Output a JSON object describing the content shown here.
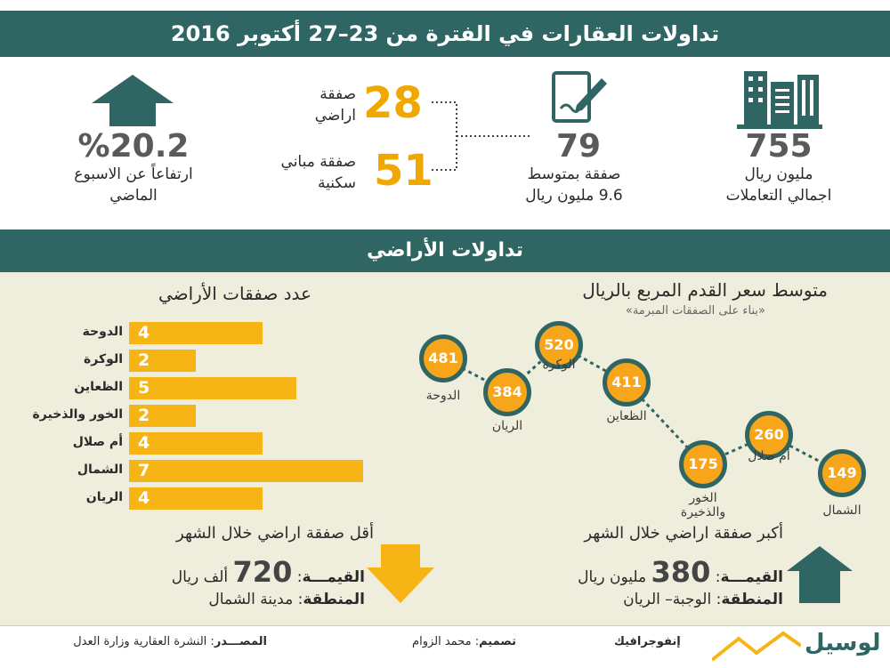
{
  "header": {
    "title": "تداولات العقارات في الفترة من 23–27 أكتوبر 2016"
  },
  "stats": {
    "change_value": "%20.2",
    "change_label_1": "ارتفاعاً عن الاسبوع",
    "change_label_2": "الماضي",
    "land_deals_value": "28",
    "land_deals_label_1": "صفقة",
    "land_deals_label_2": "اراضي",
    "residential_value": "51",
    "residential_label_1": "صفقة مباني",
    "residential_label_2": "سكنية",
    "deals_total_value": "79",
    "deals_total_label_1": "صفقة بمتوسط",
    "deals_total_label_2": "9.6 مليون ريال",
    "total_value": "755",
    "total_label_1": "مليون ريال",
    "total_label_2": "اجمالي التعاملات"
  },
  "section": {
    "title": "تداولات الأراضي"
  },
  "chart_data": [
    {
      "type": "bar",
      "title": "عدد صفقات الأراضي",
      "categories": [
        "الدوحة",
        "الوكرة",
        "الظعاين",
        "الخور والذخيرة",
        "أم صلال",
        "الشمال",
        "الريان"
      ],
      "values": [
        4,
        2,
        5,
        2,
        4,
        7,
        4
      ],
      "xlim": [
        0,
        7
      ]
    },
    {
      "type": "line",
      "title": "متوسط سعر القدم المربع بالريال",
      "subtitle": "«بناء على الصفقات المبرمة»",
      "categories": [
        "الدوحة",
        "الريان",
        "الوكرة",
        "الظعاين",
        "الخور والذخيرة",
        "أم صلال",
        "الشمال"
      ],
      "values": [
        481,
        384,
        520,
        411,
        175,
        260,
        149
      ]
    }
  ],
  "smallest": {
    "heading": "أقل صفقة اراضي خلال الشهر",
    "value_label": "القيمـــة",
    "value": "720",
    "value_unit": "ألف ريال",
    "area_label": "المنطقة",
    "area": "مدينة الشمال"
  },
  "largest": {
    "heading": "أكبر صفقة اراضي خلال الشهر",
    "value_label": "القيمـــة",
    "value": "380",
    "value_unit": "مليون ريال",
    "area_label": "المنطقة",
    "area": "الوجبة– الريان"
  },
  "footer": {
    "source_label": "المصـــدر",
    "source": "النشرة العقارية وزارة العدل",
    "design_label": "تصميم",
    "design": "محمد الزوام",
    "infographic": "إنفوجرافيك",
    "brand": "لوسيل"
  },
  "colors": {
    "teal": "#2f6663",
    "orange": "#f7b515",
    "panel": "#efeedd"
  },
  "icons": [
    "up-arrow-icon",
    "document-pen-icon",
    "buildings-icon",
    "down-arrow-icon"
  ]
}
